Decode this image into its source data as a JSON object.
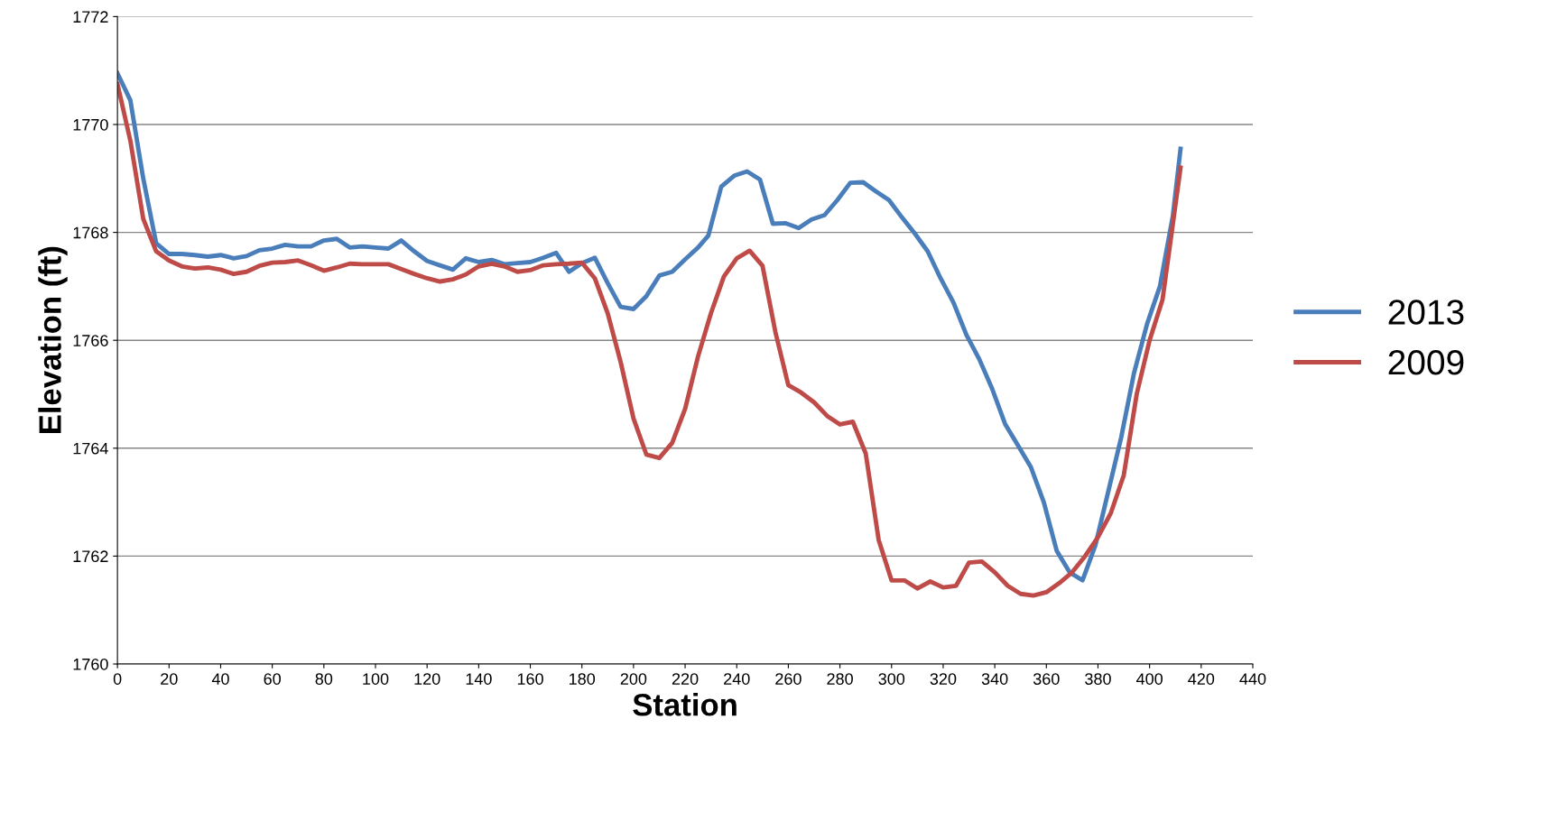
{
  "chart_data": {
    "type": "line",
    "xlabel": "Station",
    "ylabel": "Elevation (ft)",
    "xlim": [
      0,
      440
    ],
    "xticks": [
      0,
      20,
      40,
      60,
      80,
      100,
      120,
      140,
      160,
      180,
      200,
      220,
      240,
      260,
      280,
      300,
      320,
      340,
      360,
      380,
      400,
      420,
      440
    ],
    "ylim": [
      1760,
      1772
    ],
    "yticks": [
      1760,
      1762,
      1764,
      1766,
      1768,
      1770,
      1772
    ],
    "grid": "y",
    "legend": "right",
    "marker": "none",
    "line_style": "solid",
    "series": [
      {
        "name": "2013",
        "color": "#4a7ebb",
        "x": [
          0,
          5,
          10,
          15,
          20,
          25,
          30,
          35,
          40,
          45,
          50,
          55,
          60,
          65,
          70,
          75,
          80,
          85,
          90,
          95,
          100,
          105,
          110,
          115,
          120,
          125,
          130,
          135,
          140,
          145,
          150,
          155,
          160,
          165,
          170,
          175,
          180,
          185,
          190,
          195,
          200,
          205,
          210,
          215,
          220,
          225,
          229,
          234,
          239,
          244,
          249,
          254,
          259,
          264,
          269,
          274,
          279,
          284,
          289,
          294,
          299,
          304,
          309,
          314,
          319,
          324,
          329,
          334,
          339,
          344,
          349,
          354,
          359,
          364,
          369,
          374,
          379,
          384,
          389,
          394,
          399,
          404,
          409,
          412
        ],
        "values": [
          1770.95,
          1770.45,
          1769.0,
          1767.8,
          1767.6,
          1767.6,
          1767.58,
          1767.55,
          1767.58,
          1767.52,
          1767.56,
          1767.67,
          1767.7,
          1767.77,
          1767.74,
          1767.74,
          1767.85,
          1767.88,
          1767.72,
          1767.74,
          1767.72,
          1767.7,
          1767.85,
          1767.65,
          1767.47,
          1767.39,
          1767.31,
          1767.52,
          1767.45,
          1767.49,
          1767.41,
          1767.43,
          1767.45,
          1767.53,
          1767.62,
          1767.27,
          1767.43,
          1767.53,
          1767.06,
          1766.62,
          1766.58,
          1766.82,
          1767.2,
          1767.27,
          1767.5,
          1767.72,
          1767.94,
          1768.85,
          1769.05,
          1769.13,
          1768.98,
          1768.16,
          1768.17,
          1768.08,
          1768.24,
          1768.32,
          1768.6,
          1768.92,
          1768.93,
          1768.76,
          1768.6,
          1768.28,
          1767.98,
          1767.65,
          1767.15,
          1766.7,
          1766.1,
          1765.65,
          1765.1,
          1764.45,
          1764.05,
          1763.65,
          1763.0,
          1762.1,
          1761.7,
          1761.55,
          1762.2,
          1763.2,
          1764.2,
          1765.4,
          1766.3,
          1767.0,
          1768.3,
          1769.55
        ]
      },
      {
        "name": "2009",
        "color": "#be4b48",
        "x": [
          0,
          5,
          10,
          15,
          20,
          25,
          30,
          35,
          40,
          45,
          50,
          55,
          60,
          65,
          70,
          75,
          80,
          85,
          90,
          95,
          100,
          105,
          110,
          115,
          120,
          125,
          130,
          135,
          140,
          145,
          150,
          155,
          160,
          165,
          170,
          175,
          180,
          185,
          190,
          195,
          200,
          205,
          210,
          215,
          220,
          225,
          230,
          235,
          240,
          245,
          250,
          255,
          260,
          265,
          270,
          275,
          280,
          285,
          290,
          295,
          300,
          305,
          310,
          315,
          320,
          325,
          330,
          335,
          340,
          345,
          350,
          355,
          360,
          365,
          370,
          375,
          380,
          385,
          390,
          395,
          400,
          405,
          412
        ],
        "values": [
          1770.75,
          1769.7,
          1768.25,
          1767.65,
          1767.48,
          1767.37,
          1767.33,
          1767.35,
          1767.31,
          1767.23,
          1767.27,
          1767.38,
          1767.44,
          1767.45,
          1767.48,
          1767.39,
          1767.29,
          1767.35,
          1767.42,
          1767.41,
          1767.41,
          1767.41,
          1767.32,
          1767.23,
          1767.15,
          1767.09,
          1767.13,
          1767.22,
          1767.37,
          1767.42,
          1767.37,
          1767.27,
          1767.3,
          1767.39,
          1767.41,
          1767.42,
          1767.44,
          1767.15,
          1766.5,
          1765.6,
          1764.55,
          1763.88,
          1763.82,
          1764.1,
          1764.73,
          1765.7,
          1766.5,
          1767.18,
          1767.52,
          1767.66,
          1767.38,
          1766.15,
          1765.17,
          1765.03,
          1764.85,
          1764.6,
          1764.44,
          1764.49,
          1763.9,
          1762.3,
          1761.55,
          1761.55,
          1761.4,
          1761.53,
          1761.42,
          1761.45,
          1761.88,
          1761.9,
          1761.7,
          1761.45,
          1761.3,
          1761.27,
          1761.33,
          1761.5,
          1761.7,
          1762.0,
          1762.35,
          1762.8,
          1763.5,
          1765.0,
          1766.0,
          1766.75,
          1769.2
        ]
      }
    ]
  }
}
